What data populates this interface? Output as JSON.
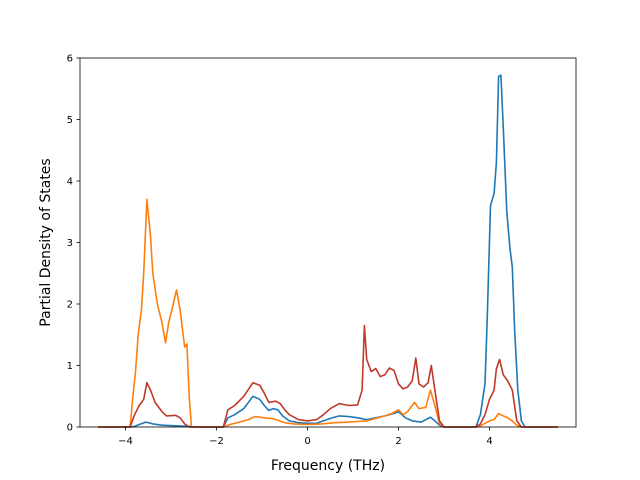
{
  "chart_data": {
    "type": "line",
    "title": "",
    "xlabel": "Frequency (THz)",
    "ylabel": "Partial Density of States",
    "xlim": [
      -5.0,
      5.9
    ],
    "ylim": [
      0,
      6
    ],
    "x_ticks": [
      -4,
      -2,
      0,
      2,
      4
    ],
    "x_tick_labels": [
      "−4",
      "−2",
      "0",
      "2",
      "4"
    ],
    "y_ticks": [
      0,
      1,
      2,
      3,
      4,
      5,
      6
    ],
    "y_tick_labels": [
      "0",
      "1",
      "2",
      "3",
      "4",
      "5",
      "6"
    ],
    "grid": false,
    "legend": "none",
    "series": [
      {
        "color": "#1f77b4",
        "points": [
          [
            -4.6,
            0
          ],
          [
            -3.9,
            0
          ],
          [
            -3.8,
            0.01
          ],
          [
            -3.7,
            0.04
          ],
          [
            -3.55,
            0.08
          ],
          [
            -3.4,
            0.05
          ],
          [
            -3.2,
            0.03
          ],
          [
            -2.9,
            0.02
          ],
          [
            -2.6,
            0.01
          ],
          [
            -2.5,
            0
          ],
          [
            -1.85,
            0
          ],
          [
            -1.75,
            0.15
          ],
          [
            -1.6,
            0.2
          ],
          [
            -1.4,
            0.3
          ],
          [
            -1.2,
            0.5
          ],
          [
            -1.05,
            0.45
          ],
          [
            -0.95,
            0.35
          ],
          [
            -0.85,
            0.27
          ],
          [
            -0.75,
            0.3
          ],
          [
            -0.65,
            0.28
          ],
          [
            -0.55,
            0.18
          ],
          [
            -0.4,
            0.1
          ],
          [
            -0.2,
            0.07
          ],
          [
            0,
            0.06
          ],
          [
            0.2,
            0.06
          ],
          [
            0.35,
            0.1
          ],
          [
            0.5,
            0.14
          ],
          [
            0.7,
            0.18
          ],
          [
            0.9,
            0.17
          ],
          [
            1.1,
            0.15
          ],
          [
            1.3,
            0.12
          ],
          [
            1.5,
            0.15
          ],
          [
            1.7,
            0.18
          ],
          [
            1.9,
            0.22
          ],
          [
            2.0,
            0.25
          ],
          [
            2.15,
            0.15
          ],
          [
            2.3,
            0.1
          ],
          [
            2.5,
            0.08
          ],
          [
            2.7,
            0.16
          ],
          [
            2.8,
            0.1
          ],
          [
            2.9,
            0.03
          ],
          [
            3.0,
            0
          ],
          [
            3.7,
            0
          ],
          [
            3.8,
            0.2
          ],
          [
            3.9,
            0.7
          ],
          [
            3.95,
            1.8
          ],
          [
            4.02,
            3.6
          ],
          [
            4.1,
            3.8
          ],
          [
            4.15,
            4.3
          ],
          [
            4.2,
            5.7
          ],
          [
            4.25,
            5.72
          ],
          [
            4.3,
            4.9
          ],
          [
            4.38,
            3.5
          ],
          [
            4.45,
            2.9
          ],
          [
            4.5,
            2.6
          ],
          [
            4.55,
            1.6
          ],
          [
            4.62,
            0.6
          ],
          [
            4.7,
            0.1
          ],
          [
            4.78,
            0
          ],
          [
            5.5,
            0
          ]
        ]
      },
      {
        "color": "#ff7f0e",
        "points": [
          [
            -4.6,
            0
          ],
          [
            -3.9,
            0
          ],
          [
            -3.85,
            0.4
          ],
          [
            -3.78,
            0.9
          ],
          [
            -3.72,
            1.5
          ],
          [
            -3.65,
            1.9
          ],
          [
            -3.6,
            2.5
          ],
          [
            -3.53,
            3.7
          ],
          [
            -3.45,
            3.1
          ],
          [
            -3.4,
            2.5
          ],
          [
            -3.3,
            2.0
          ],
          [
            -3.2,
            1.7
          ],
          [
            -3.12,
            1.37
          ],
          [
            -3.05,
            1.7
          ],
          [
            -2.95,
            2.0
          ],
          [
            -2.88,
            2.23
          ],
          [
            -2.8,
            1.9
          ],
          [
            -2.7,
            1.3
          ],
          [
            -2.65,
            1.35
          ],
          [
            -2.6,
            0.5
          ],
          [
            -2.55,
            0
          ],
          [
            -1.85,
            0
          ],
          [
            -1.7,
            0.04
          ],
          [
            -1.5,
            0.08
          ],
          [
            -1.3,
            0.12
          ],
          [
            -1.15,
            0.17
          ],
          [
            -0.95,
            0.15
          ],
          [
            -0.8,
            0.14
          ],
          [
            -0.65,
            0.11
          ],
          [
            -0.5,
            0.07
          ],
          [
            -0.3,
            0.05
          ],
          [
            0,
            0.04
          ],
          [
            0.3,
            0.05
          ],
          [
            0.6,
            0.07
          ],
          [
            0.9,
            0.08
          ],
          [
            1.1,
            0.09
          ],
          [
            1.3,
            0.1
          ],
          [
            1.5,
            0.14
          ],
          [
            1.7,
            0.18
          ],
          [
            1.85,
            0.22
          ],
          [
            2.0,
            0.28
          ],
          [
            2.1,
            0.2
          ],
          [
            2.2,
            0.25
          ],
          [
            2.35,
            0.4
          ],
          [
            2.45,
            0.3
          ],
          [
            2.6,
            0.32
          ],
          [
            2.7,
            0.6
          ],
          [
            2.8,
            0.35
          ],
          [
            2.9,
            0.05
          ],
          [
            3.0,
            0
          ],
          [
            3.7,
            0
          ],
          [
            3.8,
            0.02
          ],
          [
            3.9,
            0.06
          ],
          [
            4.0,
            0.1
          ],
          [
            4.1,
            0.12
          ],
          [
            4.2,
            0.22
          ],
          [
            4.3,
            0.18
          ],
          [
            4.4,
            0.15
          ],
          [
            4.5,
            0.1
          ],
          [
            4.6,
            0.03
          ],
          [
            4.7,
            0
          ],
          [
            5.5,
            0
          ]
        ]
      },
      {
        "color": "#c0392b",
        "points": [
          [
            -4.6,
            0
          ],
          [
            -3.9,
            0
          ],
          [
            -3.8,
            0.2
          ],
          [
            -3.7,
            0.35
          ],
          [
            -3.6,
            0.45
          ],
          [
            -3.53,
            0.72
          ],
          [
            -3.45,
            0.6
          ],
          [
            -3.35,
            0.4
          ],
          [
            -3.2,
            0.25
          ],
          [
            -3.1,
            0.18
          ],
          [
            -2.9,
            0.19
          ],
          [
            -2.8,
            0.15
          ],
          [
            -2.7,
            0.05
          ],
          [
            -2.6,
            0
          ],
          [
            -1.85,
            0
          ],
          [
            -1.75,
            0.28
          ],
          [
            -1.6,
            0.35
          ],
          [
            -1.4,
            0.5
          ],
          [
            -1.2,
            0.72
          ],
          [
            -1.05,
            0.68
          ],
          [
            -0.95,
            0.55
          ],
          [
            -0.85,
            0.4
          ],
          [
            -0.7,
            0.42
          ],
          [
            -0.6,
            0.38
          ],
          [
            -0.5,
            0.28
          ],
          [
            -0.4,
            0.2
          ],
          [
            -0.2,
            0.12
          ],
          [
            0,
            0.1
          ],
          [
            0.2,
            0.12
          ],
          [
            0.35,
            0.2
          ],
          [
            0.5,
            0.3
          ],
          [
            0.7,
            0.38
          ],
          [
            0.9,
            0.35
          ],
          [
            1.1,
            0.36
          ],
          [
            1.2,
            0.6
          ],
          [
            1.25,
            1.65
          ],
          [
            1.3,
            1.1
          ],
          [
            1.4,
            0.9
          ],
          [
            1.5,
            0.95
          ],
          [
            1.6,
            0.82
          ],
          [
            1.7,
            0.85
          ],
          [
            1.8,
            0.96
          ],
          [
            1.9,
            0.92
          ],
          [
            2.0,
            0.7
          ],
          [
            2.1,
            0.62
          ],
          [
            2.2,
            0.65
          ],
          [
            2.3,
            0.75
          ],
          [
            2.38,
            1.12
          ],
          [
            2.45,
            0.7
          ],
          [
            2.55,
            0.65
          ],
          [
            2.65,
            0.72
          ],
          [
            2.72,
            1.0
          ],
          [
            2.8,
            0.6
          ],
          [
            2.9,
            0.1
          ],
          [
            3.0,
            0
          ],
          [
            3.7,
            0
          ],
          [
            3.8,
            0.05
          ],
          [
            3.9,
            0.2
          ],
          [
            4.0,
            0.45
          ],
          [
            4.1,
            0.6
          ],
          [
            4.15,
            0.95
          ],
          [
            4.22,
            1.1
          ],
          [
            4.3,
            0.85
          ],
          [
            4.4,
            0.75
          ],
          [
            4.5,
            0.6
          ],
          [
            4.6,
            0.1
          ],
          [
            4.7,
            0
          ],
          [
            5.5,
            0
          ]
        ]
      }
    ]
  }
}
